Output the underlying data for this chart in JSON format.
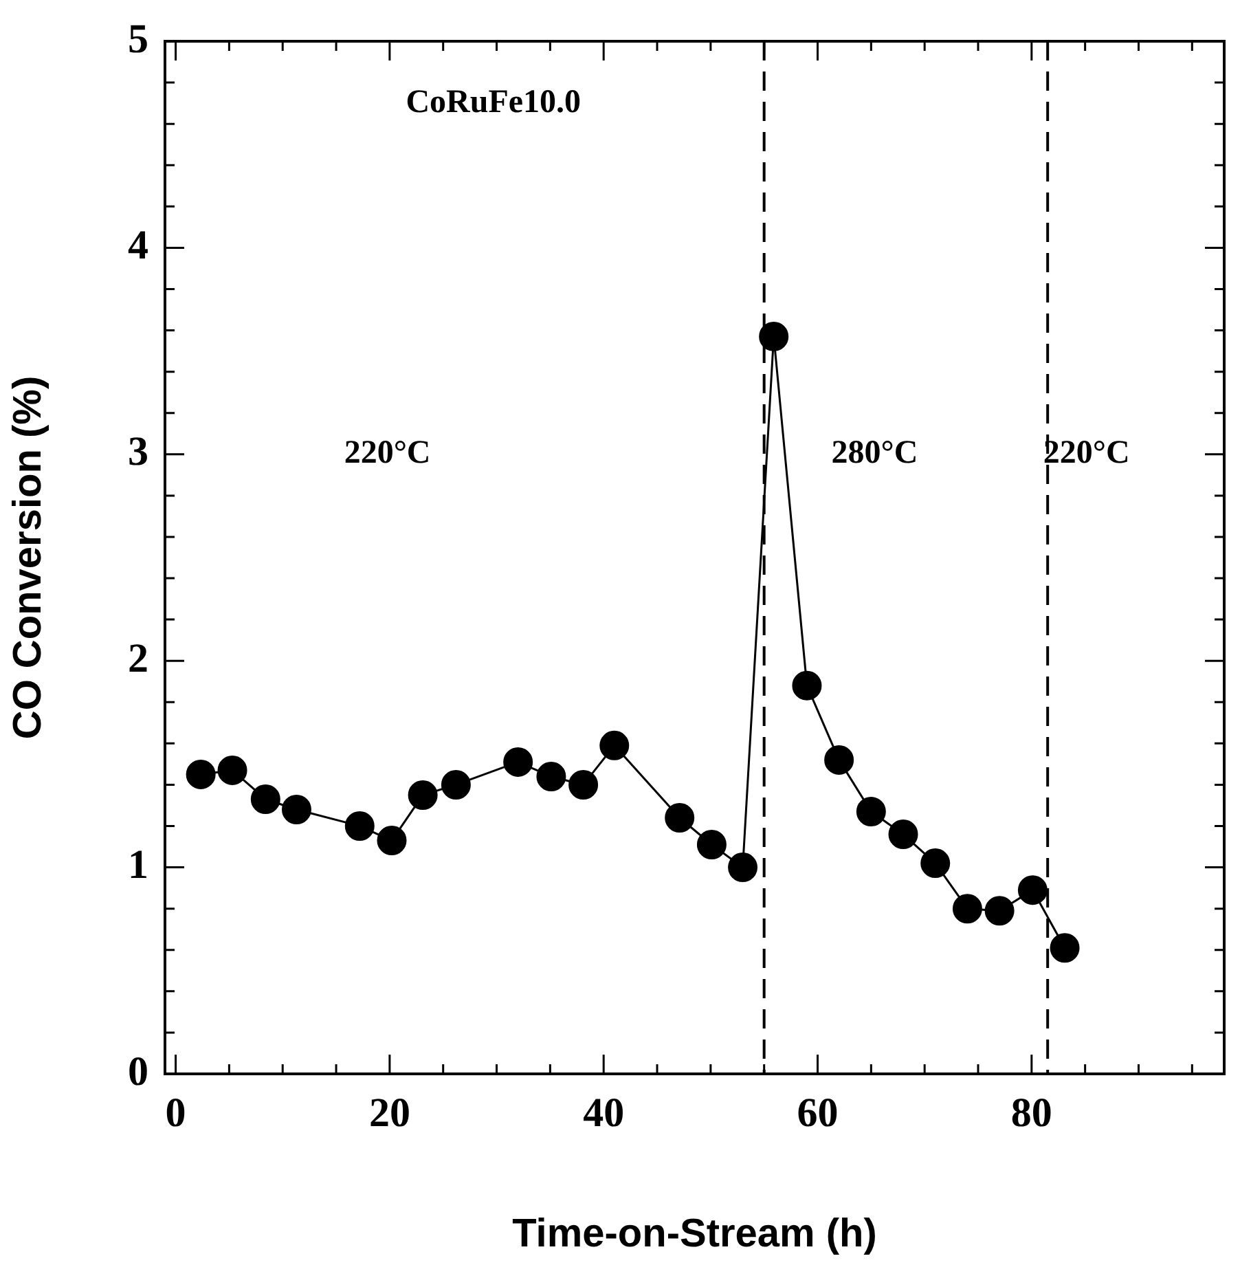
{
  "chart_data": {
    "type": "line",
    "xlabel": "Time-on-Stream (h)",
    "ylabel": "CO Conversion (%)",
    "x": [
      2.35,
      5.3,
      8.4,
      11.3,
      17.2,
      20.2,
      23.1,
      26.2,
      32.0,
      35.1,
      38.1,
      41.0,
      47.1,
      50.1,
      53.0,
      55.9,
      59.0,
      62.0,
      65.0,
      68.0,
      71.0,
      74.0,
      77.0,
      80.1,
      83.1
    ],
    "series": [
      {
        "color": "#000000",
        "values": [
          1.45,
          1.47,
          1.33,
          1.28,
          1.2,
          1.13,
          1.35,
          1.4,
          1.51,
          1.44,
          1.4,
          1.59,
          1.24,
          1.11,
          1.0,
          3.57,
          1.88,
          1.52,
          1.27,
          1.16,
          1.02,
          0.8,
          0.79,
          0.89,
          0.61
        ]
      }
    ],
    "marker": "circle",
    "line_style": "solid",
    "legend": false,
    "grid": false,
    "xlim": [
      -1,
      98
    ],
    "ylim": [
      0,
      5
    ],
    "xticks": [
      0,
      {
        "value": 5,
        "label": null
      },
      {
        "value": 10,
        "label": null
      },
      {
        "value": 15,
        "label": null
      },
      20,
      {
        "value": 25,
        "label": null
      },
      {
        "value": 30,
        "label": null
      },
      {
        "value": 35,
        "label": null
      },
      40,
      {
        "value": 45,
        "label": null
      },
      {
        "value": 50,
        "label": null
      },
      {
        "value": 55,
        "label": null
      },
      60,
      {
        "value": 65,
        "label": null
      },
      {
        "value": 70,
        "label": null
      },
      {
        "value": 75,
        "label": null
      },
      80,
      {
        "value": 85,
        "label": null
      },
      {
        "value": 90,
        "label": null
      },
      {
        "value": 95,
        "label": null
      }
    ],
    "yticks": [
      0,
      {
        "value": 0.2,
        "label": null
      },
      {
        "value": 0.4,
        "label": null
      },
      {
        "value": 0.6,
        "label": null
      },
      {
        "value": 0.8,
        "label": null
      },
      1,
      {
        "value": 1.2,
        "label": null
      },
      {
        "value": 1.4,
        "label": null
      },
      {
        "value": 1.6,
        "label": null
      },
      {
        "value": 1.8,
        "label": null
      },
      2,
      {
        "value": 2.2,
        "label": null
      },
      {
        "value": 2.4,
        "label": null
      },
      {
        "value": 2.6,
        "label": null
      },
      {
        "value": 2.8,
        "label": null
      },
      3,
      {
        "value": 3.2,
        "label": null
      },
      {
        "value": 3.4,
        "label": null
      },
      {
        "value": 3.6,
        "label": null
      },
      {
        "value": 3.8,
        "label": null
      },
      4,
      {
        "value": 4.2,
        "label": null
      },
      {
        "value": 4.4,
        "label": null
      },
      {
        "value": 4.6,
        "label": null
      },
      {
        "value": 4.8,
        "label": null
      },
      5
    ],
    "ref_lines": [
      {
        "axis": "x",
        "value": 55,
        "line_style": "dashed"
      },
      {
        "axis": "x",
        "value": 81.5,
        "line_style": "dashed"
      }
    ],
    "annotations": [
      "CoRuFe10.0",
      "220°C",
      "280°C",
      "220°C"
    ]
  }
}
